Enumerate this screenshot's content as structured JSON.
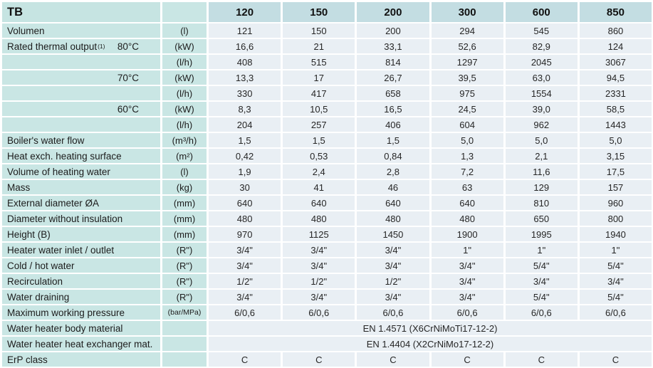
{
  "table": {
    "corner_label": "TB",
    "models": [
      "120",
      "150",
      "200",
      "300",
      "600",
      "850"
    ],
    "colors": {
      "label_bg": "#c9e6e4",
      "model_header_bg": "#c3dde2",
      "data_bg": "#e9eff4",
      "separator": "#ffffff",
      "text": "#1c1c1c"
    },
    "rows": [
      {
        "label": "Volumen",
        "unit": "(l)",
        "values": [
          "121",
          "150",
          "200",
          "294",
          "545",
          "860"
        ]
      },
      {
        "label": "Rated thermal output",
        "label_sup": "(1)",
        "temp": "80°C",
        "unit": "(kW)",
        "values": [
          "16,6",
          "21",
          "33,1",
          "52,6",
          "82,9",
          "124"
        ]
      },
      {
        "label": "",
        "unit": "(l/h)",
        "values": [
          "408",
          "515",
          "814",
          "1297",
          "2045",
          "3067"
        ]
      },
      {
        "label": "",
        "temp": "70°C",
        "unit": "(kW)",
        "values": [
          "13,3",
          "17",
          "26,7",
          "39,5",
          "63,0",
          "94,5"
        ]
      },
      {
        "label": "",
        "unit": "(l/h)",
        "values": [
          "330",
          "417",
          "658",
          "975",
          "1554",
          "2331"
        ]
      },
      {
        "label": "",
        "temp": "60°C",
        "unit": "(kW)",
        "values": [
          "8,3",
          "10,5",
          "16,5",
          "24,5",
          "39,0",
          "58,5"
        ]
      },
      {
        "label": "",
        "unit": "(l/h)",
        "values": [
          "204",
          "257",
          "406",
          "604",
          "962",
          "1443"
        ]
      },
      {
        "label": "Boiler's water flow",
        "unit": "(m³/h)",
        "values": [
          "1,5",
          "1,5",
          "1,5",
          "5,0",
          "5,0",
          "5,0"
        ]
      },
      {
        "label": "Heat exch. heating surface",
        "unit": "(m²)",
        "values": [
          "0,42",
          "0,53",
          "0,84",
          "1,3",
          "2,1",
          "3,15"
        ]
      },
      {
        "label": "Volume of heating water",
        "unit": "(l)",
        "values": [
          "1,9",
          "2,4",
          "2,8",
          "7,2",
          "11,6",
          "17,5"
        ]
      },
      {
        "label": "Mass",
        "unit": "(kg)",
        "values": [
          "30",
          "41",
          "46",
          "63",
          "129",
          "157"
        ]
      },
      {
        "label": "External diameter ØA",
        "unit": "(mm)",
        "values": [
          "640",
          "640",
          "640",
          "640",
          "810",
          "960"
        ]
      },
      {
        "label": "Diameter without insulation",
        "unit": "(mm)",
        "values": [
          "480",
          "480",
          "480",
          "480",
          "650",
          "800"
        ]
      },
      {
        "label": "Height (B)",
        "unit": "(mm)",
        "values": [
          "970",
          "1125",
          "1450",
          "1900",
          "1995",
          "1940"
        ]
      },
      {
        "label": "Heater water inlet / outlet",
        "unit": "(R\")",
        "values": [
          "3/4\"",
          "3/4\"",
          "3/4\"",
          "1\"",
          "1\"",
          "1\""
        ]
      },
      {
        "label": "Cold / hot water",
        "unit": "(R\")",
        "values": [
          "3/4\"",
          "3/4\"",
          "3/4\"",
          "3/4\"",
          "5/4\"",
          "5/4\""
        ]
      },
      {
        "label": "Recirculation",
        "unit": "(R\")",
        "values": [
          "1/2\"",
          "1/2\"",
          "1/2\"",
          "3/4\"",
          "3/4\"",
          "3/4\""
        ]
      },
      {
        "label": "Water draining",
        "unit": "(R\")",
        "values": [
          "3/4\"",
          "3/4\"",
          "3/4\"",
          "3/4\"",
          "5/4\"",
          "5/4\""
        ]
      },
      {
        "label": "Maximum working pressure",
        "unit": "(bar/MPa)",
        "unit_small": true,
        "values": [
          "6/0,6",
          "6/0,6",
          "6/0,6",
          "6/0,6",
          "6/0,6",
          "6/0,6"
        ]
      },
      {
        "label": "Water heater body material",
        "unit": "",
        "span_value": "EN 1.4571 (X6CrNiMoTi17-12-2)"
      },
      {
        "label": "Water heater heat exchanger mat.",
        "unit": "",
        "span_value": "EN 1.4404 (X2CrNiMo17-12-2)"
      },
      {
        "label": "ErP class",
        "unit": "",
        "values": [
          "C",
          "C",
          "C",
          "C",
          "C",
          "C"
        ]
      }
    ]
  }
}
